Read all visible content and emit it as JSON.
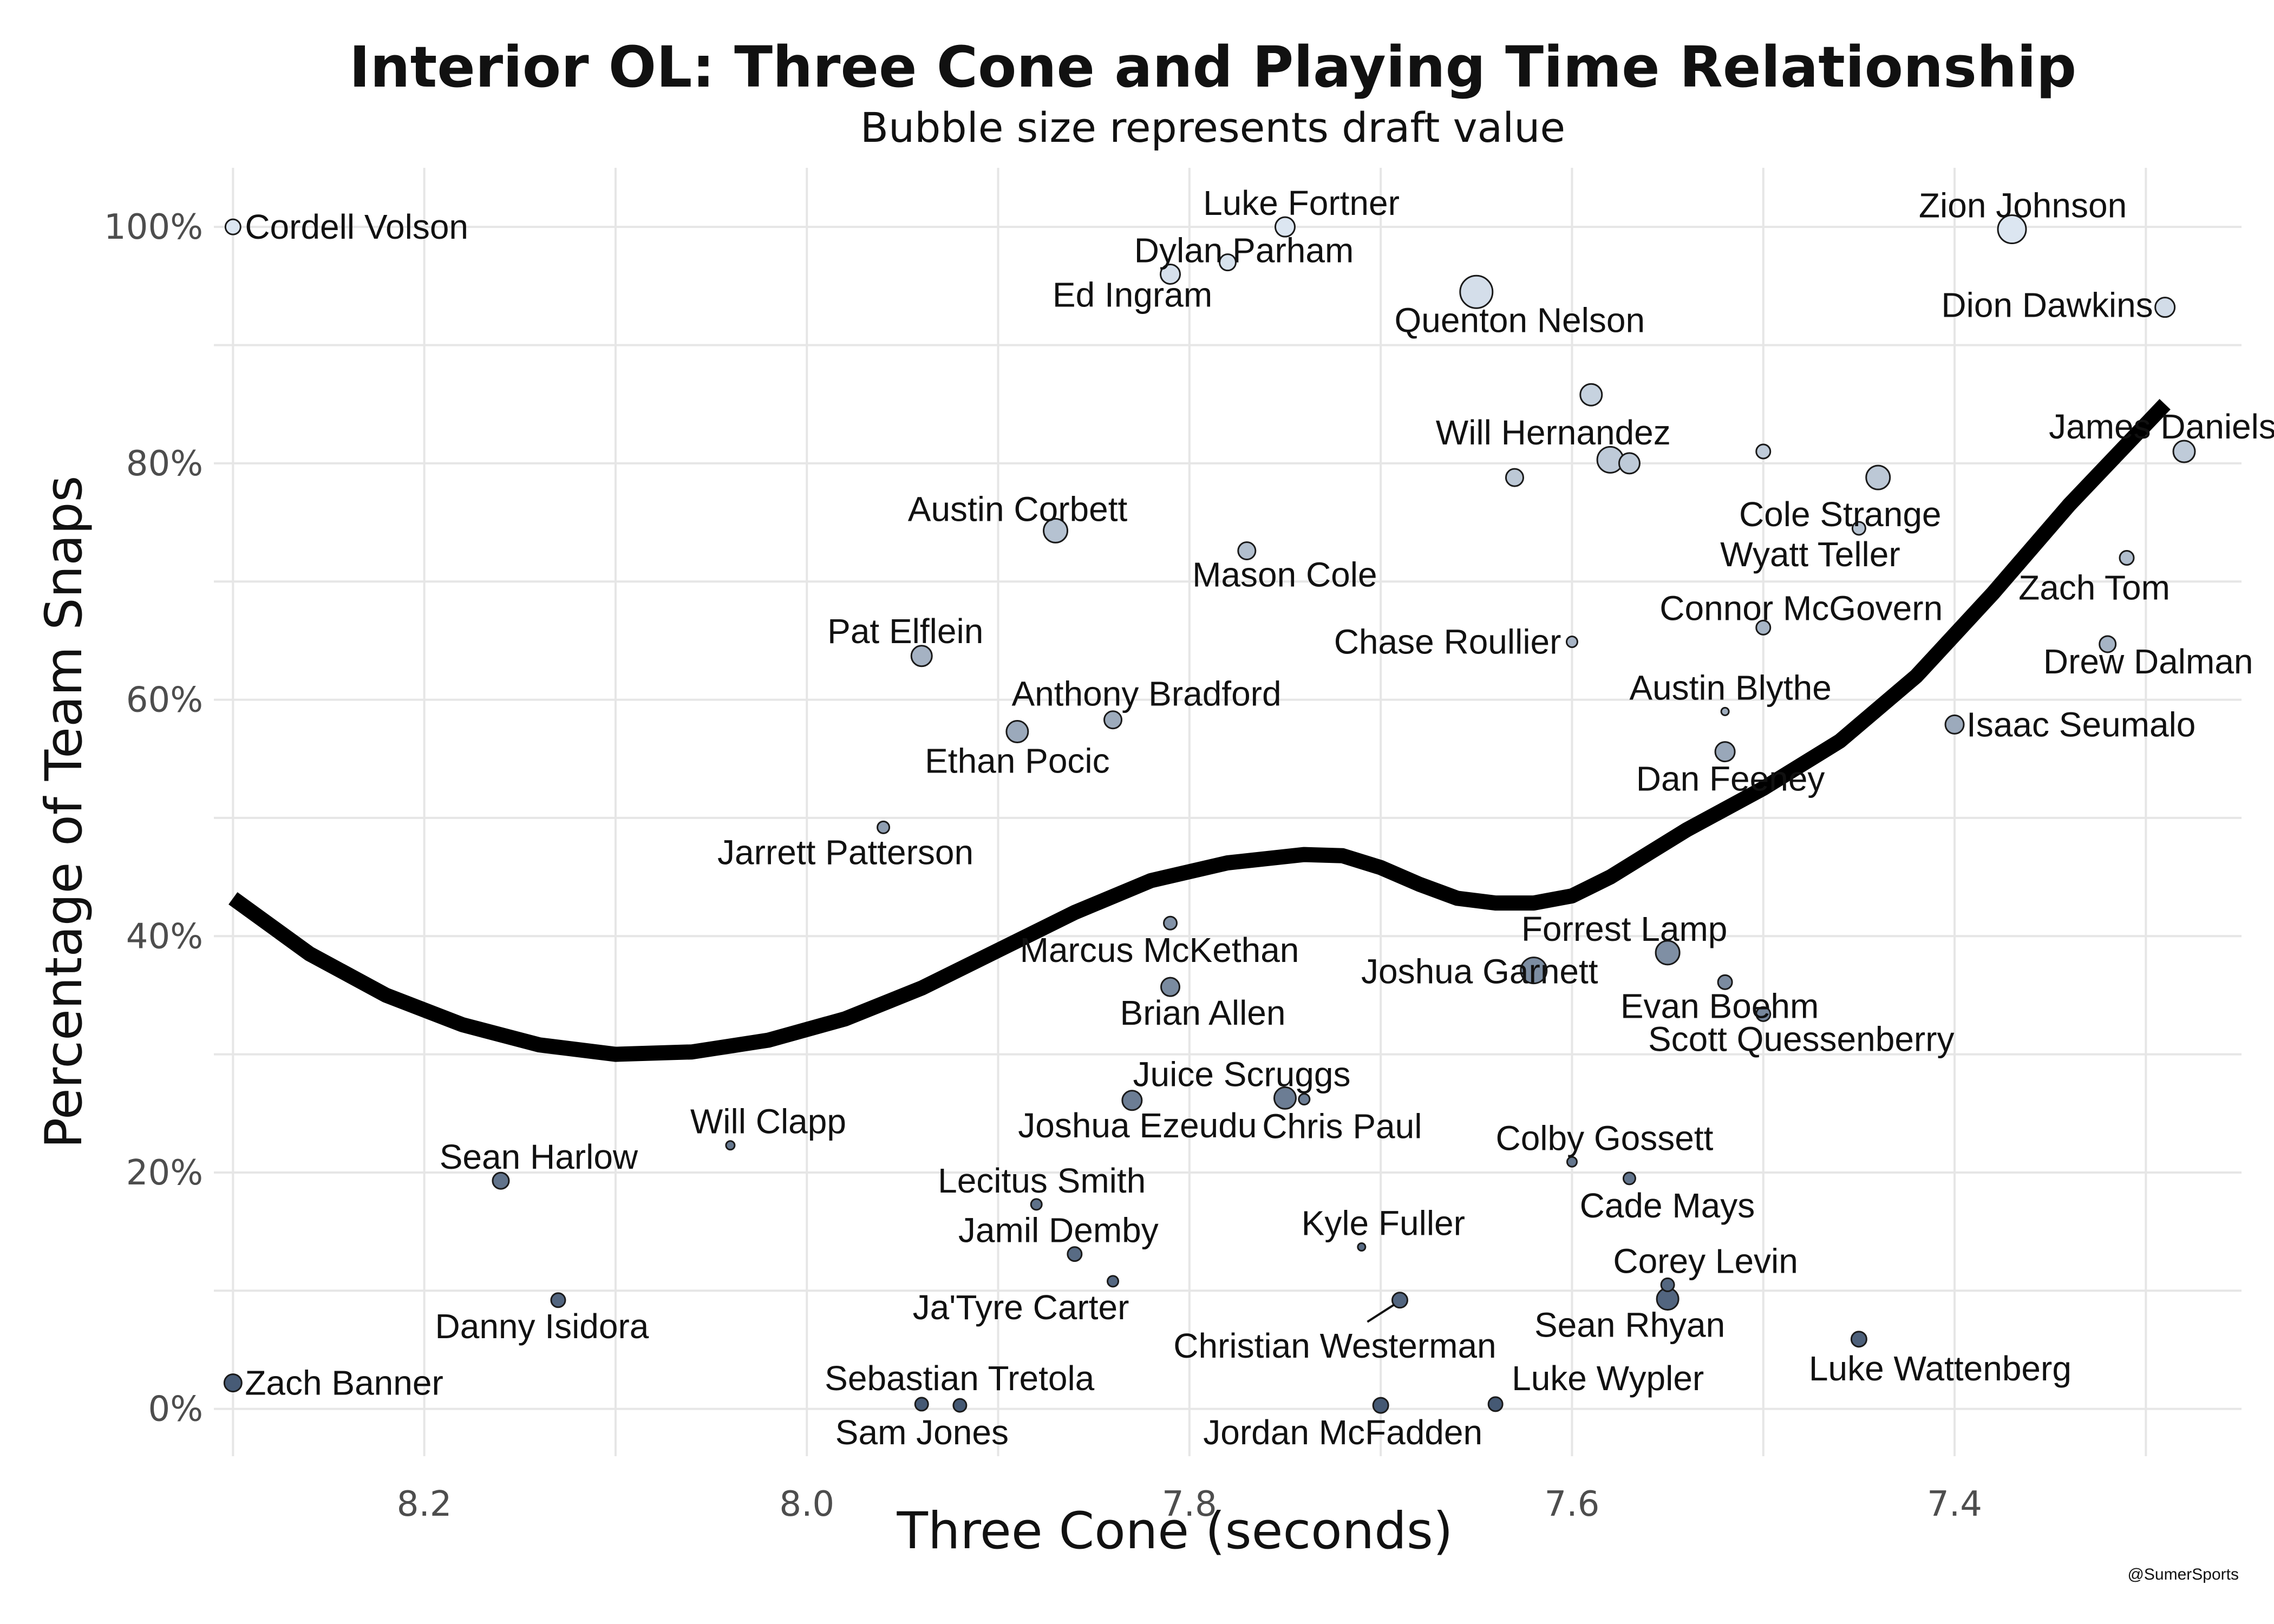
{
  "chart_data": {
    "type": "scatter",
    "title": "Interior OL: Three Cone and Playing Time Relationship",
    "subtitle": "Bubble size represents draft value",
    "xlabel": "Three Cone (seconds)",
    "ylabel": "Percentage of Team Snaps",
    "x_reversed": true,
    "xlim": [
      8.31,
      7.25
    ],
    "ylim": [
      -0.04,
      1.05
    ],
    "x_ticks": [
      {
        "value": 8.2,
        "label": "8.2"
      },
      {
        "value": 8.0,
        "label": "8.0"
      },
      {
        "value": 7.8,
        "label": "7.8"
      },
      {
        "value": 7.6,
        "label": "7.6"
      },
      {
        "value": 7.4,
        "label": "7.4"
      }
    ],
    "y_ticks": [
      {
        "value": 0.0,
        "label": "0%"
      },
      {
        "value": 0.2,
        "label": "20%"
      },
      {
        "value": 0.4,
        "label": "40%"
      },
      {
        "value": 0.6,
        "label": "60%"
      },
      {
        "value": 0.8,
        "label": "80%"
      },
      {
        "value": 1.0,
        "label": "100%"
      }
    ],
    "grid": true,
    "color_scale": {
      "low": "#445873",
      "high": "#dce6f1"
    },
    "points": [
      {
        "x": 8.3,
        "y": 1.0,
        "size": 14,
        "label": "Cordell Volson"
      },
      {
        "x": 7.75,
        "y": 1.0,
        "size": 18,
        "label": "Luke Fortner"
      },
      {
        "x": 7.78,
        "y": 0.97,
        "size": 15,
        "label": "Dylan Parham"
      },
      {
        "x": 7.81,
        "y": 0.96,
        "size": 18,
        "label": "Ed Ingram"
      },
      {
        "x": 7.65,
        "y": 0.945,
        "size": 30,
        "label": "Quenton Nelson"
      },
      {
        "x": 7.37,
        "y": 0.998,
        "size": 26,
        "label": "Zion Johnson"
      },
      {
        "x": 7.29,
        "y": 0.932,
        "size": 18,
        "label": "Dion Dawkins"
      },
      {
        "x": 7.59,
        "y": 0.858,
        "size": 20,
        "label": "Will Hernandez"
      },
      {
        "x": 7.58,
        "y": 0.803,
        "size": 24,
        "label": ""
      },
      {
        "x": 7.57,
        "y": 0.8,
        "size": 19,
        "label": ""
      },
      {
        "x": 7.63,
        "y": 0.788,
        "size": 16,
        "label": ""
      },
      {
        "x": 7.5,
        "y": 0.81,
        "size": 13,
        "label": ""
      },
      {
        "x": 7.44,
        "y": 0.788,
        "size": 22,
        "label": "Cole Strange"
      },
      {
        "x": 7.28,
        "y": 0.81,
        "size": 20,
        "label": "James Daniels"
      },
      {
        "x": 7.45,
        "y": 0.745,
        "size": 12,
        "label": "Wyatt Teller"
      },
      {
        "x": 7.31,
        "y": 0.72,
        "size": 13,
        "label": "Zach Tom"
      },
      {
        "x": 7.87,
        "y": 0.743,
        "size": 22,
        "label": "Austin Corbett"
      },
      {
        "x": 7.77,
        "y": 0.726,
        "size": 16,
        "label": "Mason Cole"
      },
      {
        "x": 7.5,
        "y": 0.661,
        "size": 13,
        "label": "Connor McGovern"
      },
      {
        "x": 7.6,
        "y": 0.649,
        "size": 10,
        "label": "Chase Roullier"
      },
      {
        "x": 7.32,
        "y": 0.647,
        "size": 15,
        "label": "Drew Dalman"
      },
      {
        "x": 7.94,
        "y": 0.637,
        "size": 19,
        "label": "Pat Elflein"
      },
      {
        "x": 7.52,
        "y": 0.59,
        "size": 7,
        "label": "Austin Blythe"
      },
      {
        "x": 7.4,
        "y": 0.579,
        "size": 17,
        "label": "Isaac Seumalo"
      },
      {
        "x": 7.84,
        "y": 0.583,
        "size": 16,
        "label": "Anthony Bradford"
      },
      {
        "x": 7.89,
        "y": 0.573,
        "size": 20,
        "label": "Ethan Pocic"
      },
      {
        "x": 7.52,
        "y": 0.556,
        "size": 18,
        "label": "Dan Feeney"
      },
      {
        "x": 7.96,
        "y": 0.492,
        "size": 11,
        "label": "Jarrett Patterson"
      },
      {
        "x": 7.81,
        "y": 0.411,
        "size": 12,
        "label": "Marcus McKethan"
      },
      {
        "x": 7.55,
        "y": 0.386,
        "size": 22,
        "label": "Forrest Lamp"
      },
      {
        "x": 7.62,
        "y": 0.371,
        "size": 24,
        "label": "Joshua Garnett"
      },
      {
        "x": 7.52,
        "y": 0.361,
        "size": 13,
        "label": "Evan Boehm"
      },
      {
        "x": 7.81,
        "y": 0.357,
        "size": 17,
        "label": "Brian Allen"
      },
      {
        "x": 7.5,
        "y": 0.334,
        "size": 13,
        "label": "Scott Quessenberry"
      },
      {
        "x": 7.83,
        "y": 0.261,
        "size": 18,
        "label": "Joshua Ezeudu"
      },
      {
        "x": 7.75,
        "y": 0.263,
        "size": 20,
        "label": "Juice Scruggs"
      },
      {
        "x": 7.74,
        "y": 0.262,
        "size": 10,
        "label": "Chris Paul"
      },
      {
        "x": 8.04,
        "y": 0.223,
        "size": 8,
        "label": "Will Clapp"
      },
      {
        "x": 8.16,
        "y": 0.193,
        "size": 15,
        "label": "Sean Harlow"
      },
      {
        "x": 7.6,
        "y": 0.209,
        "size": 9,
        "label": "Colby Gossett"
      },
      {
        "x": 7.57,
        "y": 0.195,
        "size": 11,
        "label": "Cade Mays"
      },
      {
        "x": 7.88,
        "y": 0.173,
        "size": 10,
        "label": "Lecitus Smith"
      },
      {
        "x": 7.86,
        "y": 0.131,
        "size": 13,
        "label": "Jamil Demby"
      },
      {
        "x": 7.71,
        "y": 0.137,
        "size": 7,
        "label": "Kyle Fuller"
      },
      {
        "x": 7.84,
        "y": 0.108,
        "size": 10,
        "label": "Ja'Tyre Carter"
      },
      {
        "x": 7.55,
        "y": 0.105,
        "size": 12,
        "label": "Corey Levin"
      },
      {
        "x": 7.55,
        "y": 0.093,
        "size": 20,
        "label": "Sean Rhyan"
      },
      {
        "x": 8.13,
        "y": 0.092,
        "size": 13,
        "label": "Danny Isidora"
      },
      {
        "x": 7.69,
        "y": 0.092,
        "size": 14,
        "label": "Christian Westerman"
      },
      {
        "x": 7.45,
        "y": 0.059,
        "size": 14,
        "label": "Luke Wattenberg"
      },
      {
        "x": 8.3,
        "y": 0.022,
        "size": 16,
        "label": "Zach Banner"
      },
      {
        "x": 7.94,
        "y": 0.004,
        "size": 12,
        "label": "Sebastian Tretola"
      },
      {
        "x": 7.92,
        "y": 0.003,
        "size": 12,
        "label": "Sam Jones"
      },
      {
        "x": 7.7,
        "y": 0.003,
        "size": 14,
        "label": "Jordan McFadden"
      },
      {
        "x": 7.64,
        "y": 0.004,
        "size": 13,
        "label": "Luke Wypler"
      }
    ],
    "trend_line": [
      [
        8.3,
        0.432
      ],
      [
        8.26,
        0.385
      ],
      [
        8.22,
        0.35
      ],
      [
        8.18,
        0.325
      ],
      [
        8.14,
        0.308
      ],
      [
        8.1,
        0.3
      ],
      [
        8.06,
        0.302
      ],
      [
        8.02,
        0.312
      ],
      [
        7.98,
        0.33
      ],
      [
        7.94,
        0.356
      ],
      [
        7.9,
        0.388
      ],
      [
        7.86,
        0.42
      ],
      [
        7.82,
        0.447
      ],
      [
        7.78,
        0.462
      ],
      [
        7.74,
        0.469
      ],
      [
        7.72,
        0.468
      ],
      [
        7.7,
        0.458
      ],
      [
        7.68,
        0.444
      ],
      [
        7.66,
        0.432
      ],
      [
        7.64,
        0.428
      ],
      [
        7.62,
        0.428
      ],
      [
        7.6,
        0.434
      ],
      [
        7.58,
        0.45
      ],
      [
        7.56,
        0.47
      ],
      [
        7.54,
        0.49
      ],
      [
        7.5,
        0.525
      ],
      [
        7.46,
        0.565
      ],
      [
        7.42,
        0.62
      ],
      [
        7.38,
        0.69
      ],
      [
        7.34,
        0.765
      ],
      [
        7.29,
        0.85
      ]
    ],
    "annotations": [
      "@SumerSports"
    ]
  }
}
